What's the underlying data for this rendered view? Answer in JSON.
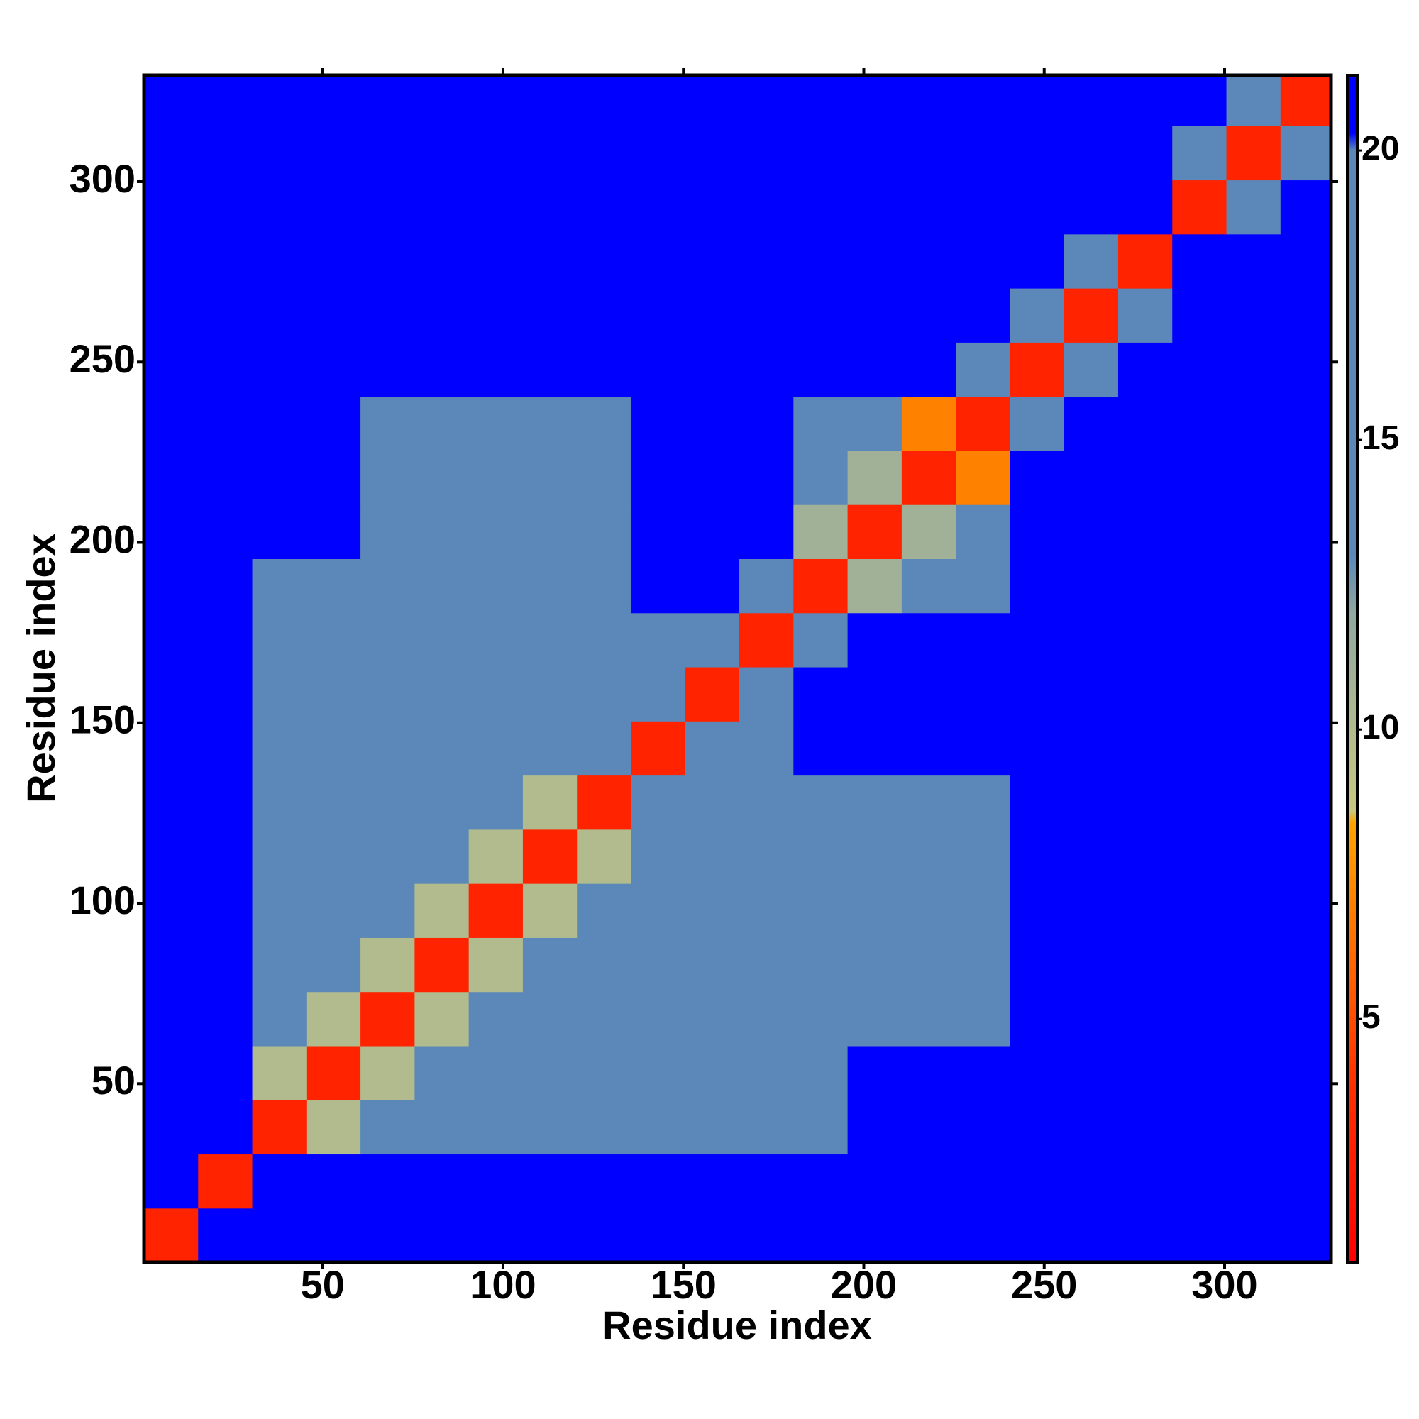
{
  "chart_data": {
    "type": "heatmap",
    "xlabel": "Residue index",
    "ylabel": "Residue index",
    "x": [
      8,
      23,
      38,
      53,
      68,
      83,
      98,
      113,
      128,
      143,
      158,
      173,
      188,
      203,
      218,
      233,
      248,
      263,
      278,
      293,
      308,
      323
    ],
    "y": [
      8,
      23,
      38,
      53,
      68,
      83,
      98,
      113,
      128,
      143,
      158,
      173,
      188,
      203,
      218,
      233,
      248,
      263,
      278,
      293,
      308,
      323
    ],
    "z": [
      [
        3,
        21,
        21,
        21,
        21,
        21,
        21,
        21,
        21,
        21,
        21,
        21,
        21,
        21,
        21,
        21,
        21,
        21,
        21,
        21,
        21,
        21
      ],
      [
        21,
        3,
        21,
        21,
        21,
        21,
        21,
        21,
        21,
        21,
        21,
        21,
        21,
        21,
        21,
        21,
        21,
        21,
        21,
        21,
        21,
        21
      ],
      [
        21,
        21,
        3,
        10,
        15,
        15,
        15,
        15,
        15,
        18,
        18,
        18,
        19,
        21,
        21,
        21,
        21,
        21,
        21,
        21,
        21,
        21
      ],
      [
        21,
        21,
        10,
        3,
        10,
        15,
        15,
        15,
        15,
        18,
        18,
        18,
        19,
        21,
        21,
        21,
        21,
        21,
        21,
        21,
        21,
        21
      ],
      [
        21,
        21,
        15,
        10,
        3,
        10,
        15,
        15,
        15,
        18,
        18,
        18,
        19,
        20,
        20,
        20,
        21,
        21,
        21,
        21,
        21,
        21
      ],
      [
        21,
        21,
        15,
        15,
        10,
        3,
        10,
        15,
        15,
        18,
        18,
        16,
        19,
        20,
        20,
        20,
        21,
        21,
        21,
        21,
        21,
        21
      ],
      [
        21,
        21,
        15,
        15,
        15,
        10,
        3,
        10,
        15,
        18,
        16,
        16,
        17,
        18,
        18,
        18,
        21,
        21,
        21,
        21,
        21,
        21
      ],
      [
        21,
        21,
        15,
        15,
        15,
        15,
        10,
        3,
        10,
        18,
        18,
        18,
        19,
        20,
        20,
        20,
        21,
        21,
        21,
        21,
        21,
        21
      ],
      [
        21,
        21,
        15,
        15,
        15,
        15,
        15,
        10,
        3,
        13,
        18,
        18,
        19,
        20,
        20,
        20,
        21,
        21,
        21,
        21,
        21,
        21
      ],
      [
        21,
        21,
        18,
        18,
        18,
        18,
        18,
        18,
        13,
        3,
        13,
        15,
        21,
        21,
        21,
        21,
        21,
        21,
        21,
        21,
        21,
        21
      ],
      [
        21,
        21,
        18,
        18,
        18,
        18,
        16,
        18,
        18,
        13,
        3,
        13,
        21,
        21,
        21,
        21,
        21,
        21,
        21,
        21,
        21,
        21
      ],
      [
        21,
        21,
        18,
        18,
        18,
        16,
        16,
        18,
        18,
        15,
        13,
        3,
        14,
        21,
        21,
        21,
        21,
        21,
        21,
        21,
        21,
        21
      ],
      [
        21,
        21,
        19,
        19,
        19,
        19,
        17,
        19,
        19,
        21,
        21,
        14,
        3,
        11,
        14,
        17,
        21,
        21,
        21,
        21,
        21,
        21
      ],
      [
        21,
        21,
        21,
        21,
        20,
        20,
        18,
        20,
        20,
        21,
        21,
        21,
        11,
        3,
        11,
        14,
        21,
        21,
        21,
        21,
        21,
        21
      ],
      [
        21,
        21,
        21,
        21,
        20,
        20,
        18,
        20,
        20,
        21,
        21,
        21,
        14,
        11,
        3,
        7,
        21,
        21,
        21,
        21,
        21,
        21
      ],
      [
        21,
        21,
        21,
        21,
        20,
        20,
        18,
        20,
        20,
        21,
        21,
        21,
        17,
        14,
        7,
        3,
        15,
        21,
        21,
        21,
        21,
        21
      ],
      [
        21,
        21,
        21,
        21,
        21,
        21,
        21,
        21,
        21,
        21,
        21,
        21,
        21,
        21,
        21,
        15,
        3,
        13,
        21,
        21,
        21,
        21
      ],
      [
        21,
        21,
        21,
        21,
        21,
        21,
        21,
        21,
        21,
        21,
        21,
        21,
        21,
        21,
        21,
        21,
        13,
        3,
        13,
        21,
        21,
        21
      ],
      [
        21,
        21,
        21,
        21,
        21,
        21,
        21,
        21,
        21,
        21,
        21,
        21,
        21,
        21,
        21,
        21,
        21,
        13,
        3,
        21,
        21,
        21
      ],
      [
        21,
        21,
        21,
        21,
        21,
        21,
        21,
        21,
        21,
        21,
        21,
        21,
        21,
        21,
        21,
        21,
        21,
        21,
        21,
        3,
        14,
        21
      ],
      [
        21,
        21,
        21,
        21,
        21,
        21,
        21,
        21,
        21,
        21,
        21,
        21,
        21,
        21,
        21,
        21,
        21,
        21,
        21,
        14,
        3,
        15
      ],
      [
        21,
        21,
        21,
        21,
        21,
        21,
        21,
        21,
        21,
        21,
        21,
        21,
        21,
        21,
        21,
        21,
        21,
        21,
        21,
        21,
        15,
        3
      ]
    ],
    "xlim": [
      0.5,
      329.5
    ],
    "ylim": [
      0.5,
      329.5
    ],
    "xticks": [
      50,
      100,
      150,
      200,
      250,
      300
    ],
    "yticks": [
      50,
      100,
      150,
      200,
      250,
      300
    ],
    "clim": [
      0.8,
      21.3
    ],
    "cticks": [
      5,
      10,
      15,
      20
    ],
    "colorscale": [
      [
        0.8,
        "#ff0000"
      ],
      [
        4,
        "#ff3300"
      ],
      [
        8.4,
        "#ffa500"
      ],
      [
        8.6,
        "#c8c880"
      ],
      [
        12,
        "#8fa8a0"
      ],
      [
        13,
        "#5b88b8"
      ],
      [
        20,
        "#5b88b8"
      ],
      [
        20.3,
        "#0000ff"
      ],
      [
        21.3,
        "#0000ff"
      ]
    ]
  }
}
